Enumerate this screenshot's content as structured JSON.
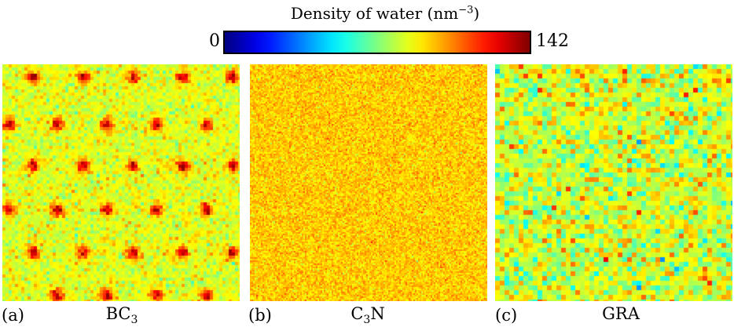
{
  "chart_data": {
    "type": "heatmap",
    "colorbar": {
      "title": "Density of water (nm",
      "title_exponent": "−3",
      "title_close": ")",
      "min_label": "0",
      "max_label": "142",
      "range": [
        0,
        142
      ],
      "colormap": "jet"
    },
    "panels": [
      {
        "id": "a",
        "label": "(a)",
        "material": {
          "base": "BC",
          "subscript": "3",
          "suffix": ""
        },
        "background_density": 85,
        "background_noise": 7,
        "hotspot_density": 135,
        "hotspot_rows": [
          {
            "y": 0.055,
            "x": [
              0.13,
              0.34,
              0.55,
              0.76,
              0.97
            ]
          },
          {
            "y": 0.255,
            "x": [
              0.03,
              0.23,
              0.44,
              0.65,
              0.86
            ]
          },
          {
            "y": 0.43,
            "x": [
              0.13,
              0.34,
              0.55,
              0.76,
              0.97
            ]
          },
          {
            "y": 0.615,
            "x": [
              0.03,
              0.23,
              0.44,
              0.65,
              0.86
            ]
          },
          {
            "y": 0.795,
            "x": [
              0.13,
              0.34,
              0.55,
              0.76,
              0.97
            ]
          },
          {
            "y": 0.975,
            "x": [
              0.23,
              0.44,
              0.65,
              0.86
            ]
          }
        ]
      },
      {
        "id": "b",
        "label": "(b)",
        "material": {
          "base": "C",
          "subscript": "3",
          "suffix": "N"
        },
        "background_density": 96,
        "background_noise": 6,
        "hotspot_rows": []
      },
      {
        "id": "c",
        "label": "(c)",
        "material": {
          "base": "GRA",
          "subscript": "",
          "suffix": ""
        },
        "background_density": 82,
        "background_noise": 13,
        "hotspot_rows": []
      }
    ]
  }
}
